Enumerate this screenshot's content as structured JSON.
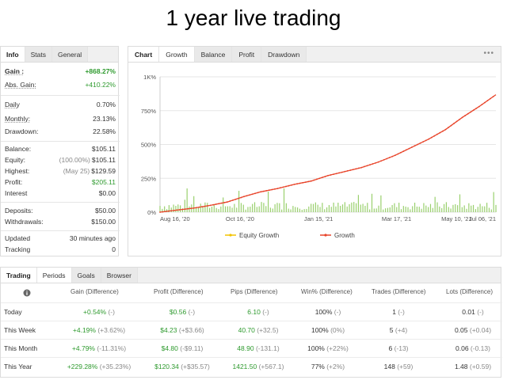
{
  "headline": "1 year live trading",
  "colors": {
    "green": "#2e9a2e",
    "line": "#e8442a",
    "bars": "#9ad06e",
    "equity": "#f2c200"
  },
  "stats": {
    "tabs": [
      "Info",
      "Stats",
      "General"
    ],
    "active_tab": "Info",
    "gain_label": "Gain :",
    "gain_value": "+868.27%",
    "abs_gain_label": "Abs. Gain:",
    "abs_gain_value": "+410.22%",
    "daily_label": "Daily",
    "daily_value": "0.70%",
    "monthly_label": "Monthly:",
    "monthly_value": "23.13%",
    "drawdown_label": "Drawdown:",
    "drawdown_value": "22.58%",
    "balance_label": "Balance:",
    "balance_value": "$105.11",
    "equity_label": "Equity:",
    "equity_paren": "(100.00%)",
    "equity_value": "$105.11",
    "highest_label": "Highest:",
    "highest_paren": "(May 25)",
    "highest_value": "$129.59",
    "profit_label": "Profit:",
    "profit_value": "$205.11",
    "interest_label": "Interest",
    "interest_value": "$0.00",
    "deposits_label": "Deposits:",
    "deposits_value": "$50.00",
    "withdrawals_label": "Withdrawals:",
    "withdrawals_value": "$150.00",
    "updated_label": "Updated",
    "updated_value": "30 minutes ago",
    "tracking_label": "Tracking",
    "tracking_value": "0"
  },
  "chart_panel": {
    "tabs": [
      "Chart",
      "Growth",
      "Balance",
      "Profit",
      "Drawdown"
    ],
    "active_tab": "Growth",
    "menu_icon": "ellipsis-icon"
  },
  "chart_data": {
    "type": "line",
    "y_ticks": [
      "0%",
      "250%",
      "500%",
      "750%",
      "1K%"
    ],
    "ylim": [
      0,
      1000
    ],
    "x_ticks": [
      "Aug 16, '20",
      "Oct 16, '20",
      "Jan 15, '21",
      "Mar 17, '21",
      "May 10, '21",
      "Jul 06, '21"
    ],
    "x_tick_pos": [
      0,
      0.238,
      0.472,
      0.704,
      0.883,
      1.0
    ],
    "legend": [
      "Equity Growth",
      "Growth"
    ],
    "legend_position": "bottom",
    "series": [
      {
        "name": "Growth",
        "x": [
          0,
          0.05,
          0.1,
          0.15,
          0.2,
          0.25,
          0.3,
          0.35,
          0.4,
          0.45,
          0.5,
          0.55,
          0.6,
          0.65,
          0.7,
          0.75,
          0.8,
          0.85,
          0.9,
          0.95,
          1.0
        ],
        "values": [
          0,
          15,
          30,
          50,
          75,
          115,
          150,
          175,
          205,
          230,
          270,
          300,
          330,
          370,
          420,
          480,
          540,
          610,
          700,
          780,
          868
        ]
      }
    ]
  },
  "trading": {
    "tabs": [
      "Trading",
      "Periods",
      "Goals",
      "Browser"
    ],
    "active_tab": "Periods",
    "info_icon": "info-icon",
    "headers": [
      "Gain (Difference)",
      "Profit (Difference)",
      "Pips (Difference)",
      "Win% (Difference)",
      "Trades (Difference)",
      "Lots (Difference)"
    ],
    "rows": [
      {
        "period": "Today",
        "gain": "+0.54%",
        "gain_diff": "(-)",
        "profit": "$0.56",
        "profit_diff": "(-)",
        "pips": "6.10",
        "pips_diff": "(-)",
        "win": "100%",
        "win_diff": "(-)",
        "trades": "1",
        "trades_diff": "(-)",
        "lots": "0.01",
        "lots_diff": "(-)"
      },
      {
        "period": "This Week",
        "gain": "+4.19%",
        "gain_diff": "(+3.62%)",
        "profit": "$4.23",
        "profit_diff": "(+$3.66)",
        "pips": "40.70",
        "pips_diff": "(+32.5)",
        "win": "100%",
        "win_diff": "(0%)",
        "trades": "5",
        "trades_diff": "(+4)",
        "lots": "0.05",
        "lots_diff": "(+0.04)"
      },
      {
        "period": "This Month",
        "gain": "+4.79%",
        "gain_diff": "(-11.31%)",
        "profit": "$4.80",
        "profit_diff": "(-$9.11)",
        "pips": "48.90",
        "pips_diff": "(-131.1)",
        "win": "100%",
        "win_diff": "(+22%)",
        "trades": "6",
        "trades_diff": "(-13)",
        "lots": "0.06",
        "lots_diff": "(-0.13)"
      },
      {
        "period": "This Year",
        "gain": "+229.28%",
        "gain_diff": "(+35.23%)",
        "profit": "$120.34",
        "profit_diff": "(+$35.57)",
        "pips": "1421.50",
        "pips_diff": "(+567.1)",
        "win": "77%",
        "win_diff": "(+2%)",
        "trades": "148",
        "trades_diff": "(+59)",
        "lots": "1.48",
        "lots_diff": "(+0.59)"
      }
    ]
  }
}
